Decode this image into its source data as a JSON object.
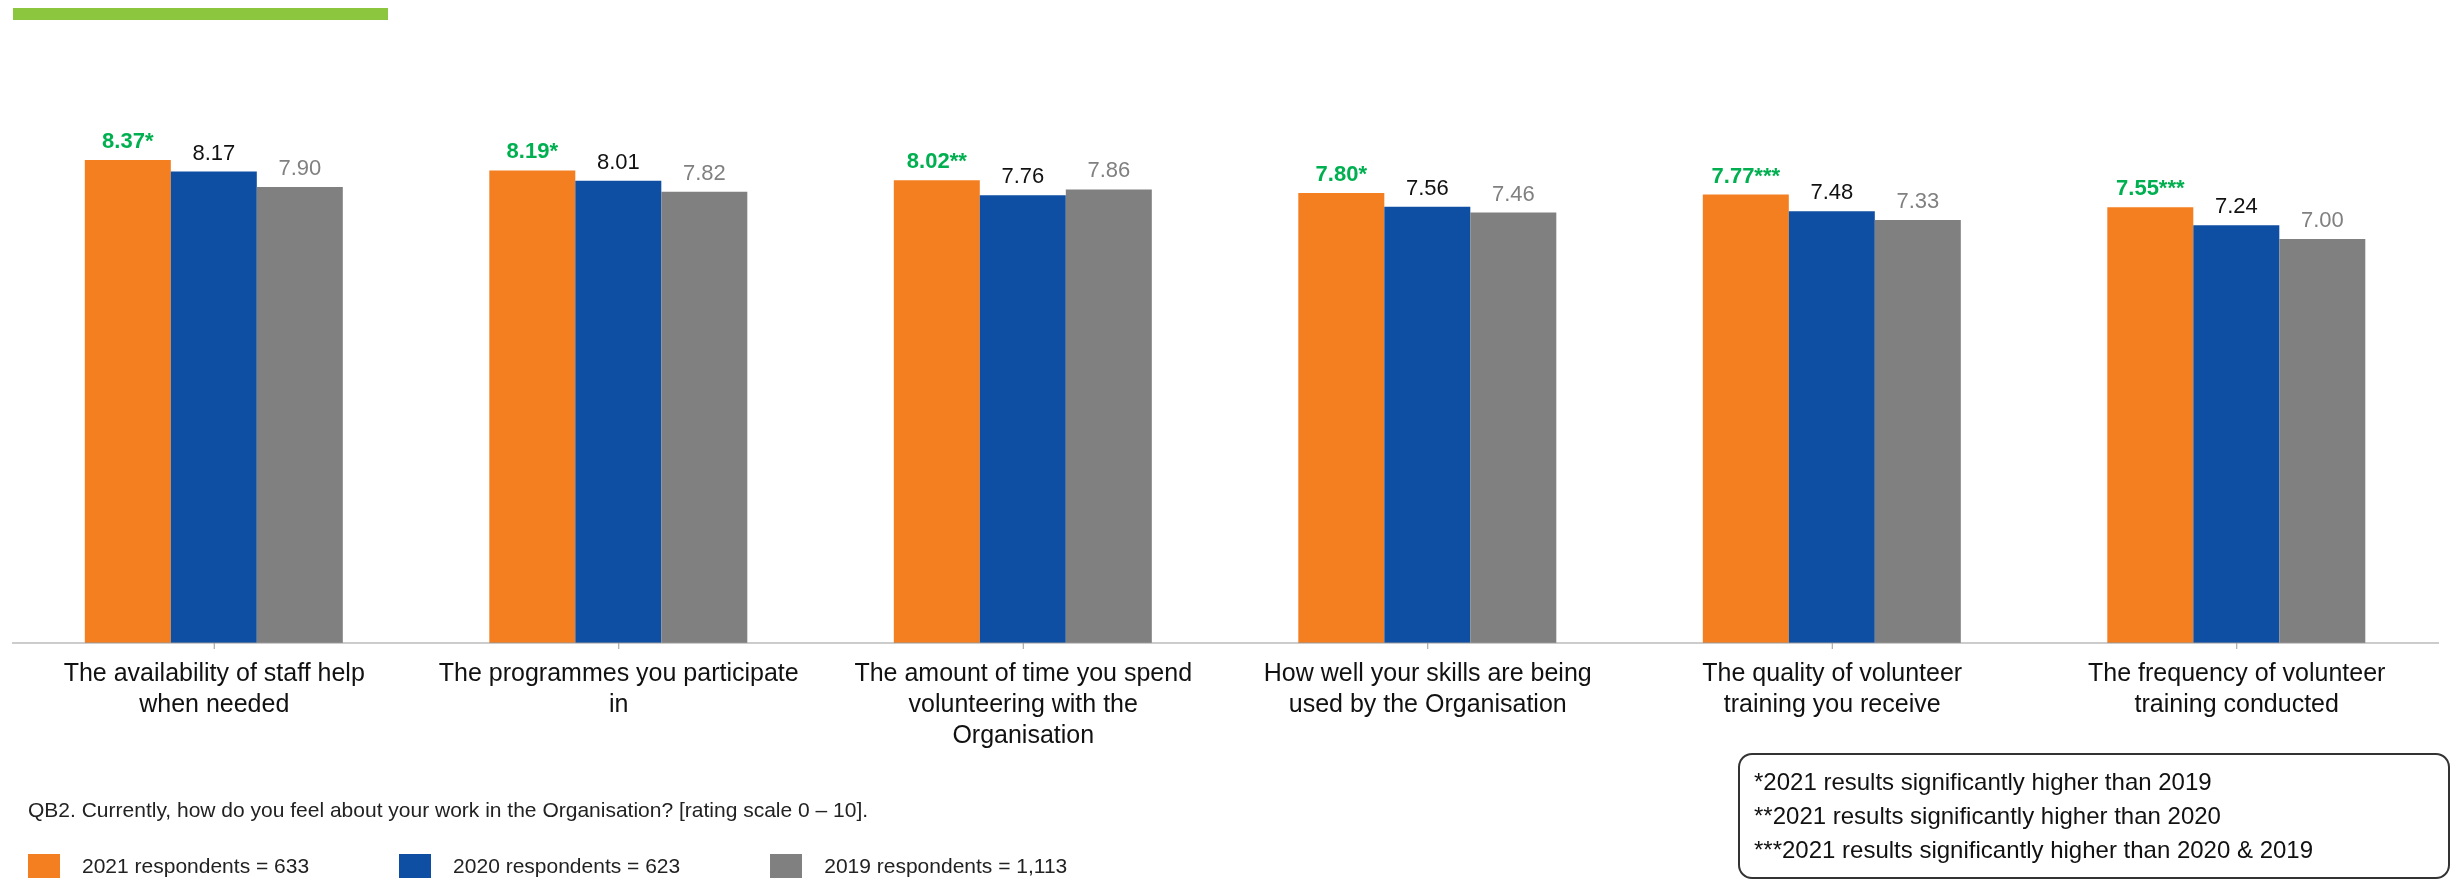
{
  "chart_data": {
    "type": "bar",
    "categories": [
      "The availability of staff help when needed",
      "The programmes you participate in",
      "The amount of time you spend volunteering with the Organisation",
      "How well your skills are being used by the Organisation",
      "The quality of volunteer training you receive",
      "The frequency of volunteer training conducted"
    ],
    "series": [
      {
        "name": "2021 respondents = 633",
        "color": "#f47f20",
        "values": [
          8.37,
          8.19,
          8.02,
          7.8,
          7.77,
          7.55
        ],
        "value_labels": [
          "8.37*",
          "8.19*",
          "8.02**",
          "7.80*",
          "7.77***",
          "7.55***"
        ]
      },
      {
        "name": "2020 respondents = 623",
        "color": "#0f4fa3",
        "values": [
          8.17,
          8.01,
          7.76,
          7.56,
          7.48,
          7.24
        ],
        "value_labels": [
          "8.17",
          "8.01",
          "7.76",
          "7.56",
          "7.48",
          "7.24"
        ]
      },
      {
        "name": "2019 respondents = 1,113",
        "color": "#808080",
        "values": [
          7.9,
          7.82,
          7.86,
          7.46,
          7.33,
          7.0
        ],
        "value_labels": [
          "7.90",
          "7.82",
          "7.86",
          "7.46",
          "7.33",
          "7.00"
        ]
      }
    ],
    "legend": "bottom left",
    "tick_labels": "x",
    "annotations": [
      "QB2. Currently, how do you feel about your work in the Organisation? [rating scale 0 – 10].",
      "*2021 results significantly higher than 2019",
      "**2021 results significantly higher than 2020",
      "***2021 results significantly higher than 2020 & 2019"
    ]
  }
}
